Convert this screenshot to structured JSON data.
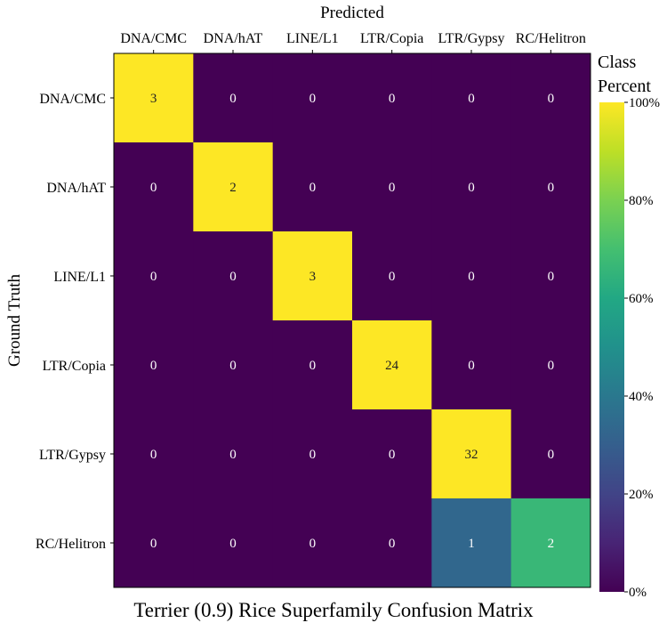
{
  "chart_data": {
    "type": "heatmap",
    "title": "Terrier (0.9) Rice Superfamily Confusion Matrix",
    "xlabel": "Predicted",
    "ylabel": "Ground Truth",
    "categories_x": [
      "DNA/CMC",
      "DNA/hAT",
      "LINE/L1",
      "LTR/Copia",
      "LTR/Gypsy",
      "RC/Helitron"
    ],
    "categories_y": [
      "DNA/CMC",
      "DNA/hAT",
      "LINE/L1",
      "LTR/Copia",
      "LTR/Gypsy",
      "RC/Helitron"
    ],
    "counts": [
      [
        3,
        0,
        0,
        0,
        0,
        0
      ],
      [
        0,
        2,
        0,
        0,
        0,
        0
      ],
      [
        0,
        0,
        3,
        0,
        0,
        0
      ],
      [
        0,
        0,
        0,
        24,
        0,
        0
      ],
      [
        0,
        0,
        0,
        0,
        32,
        0
      ],
      [
        0,
        0,
        0,
        0,
        1,
        2
      ]
    ],
    "colorbar": {
      "title_line1": "Class",
      "title_line2": "Percent",
      "ticks": [
        "0%",
        "20%",
        "40%",
        "60%",
        "80%",
        "100%"
      ],
      "range": [
        0,
        100
      ],
      "colormap": "viridis"
    }
  }
}
